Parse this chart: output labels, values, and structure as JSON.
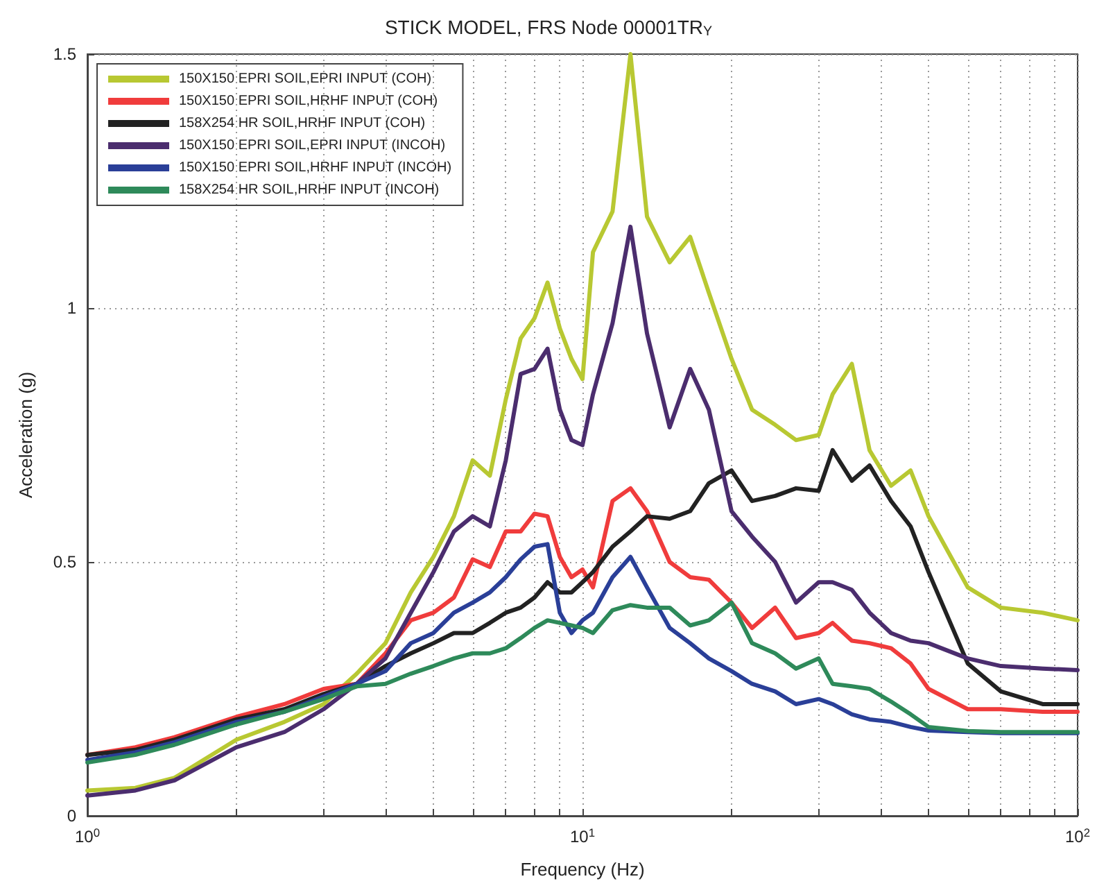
{
  "chart_data": {
    "type": "line",
    "title": "STICK MODEL, FRS Node 00001TR$_{Y}$",
    "xlabel": "Frequency (Hz)",
    "ylabel": "Acceleration (g)",
    "x": [
      1,
      1.25,
      1.5,
      2,
      2.5,
      3,
      3.5,
      4,
      4.5,
      5,
      5.5,
      6,
      6.5,
      7,
      7.5,
      8,
      8.5,
      9,
      9.5,
      10,
      10.5,
      11.5,
      12.5,
      13.5,
      15,
      16.5,
      18,
      20,
      22,
      24.5,
      27,
      30,
      32,
      35,
      38,
      42,
      46,
      50,
      60,
      70,
      85,
      100
    ],
    "series": [
      {
        "name": "150X150 EPRI SOIL,EPRI INPUT (COH)",
        "color": "#b8c832",
        "values": [
          0.05,
          0.055,
          0.075,
          0.15,
          0.185,
          0.22,
          0.28,
          0.34,
          0.44,
          0.51,
          0.59,
          0.7,
          0.67,
          0.82,
          0.94,
          0.98,
          1.05,
          0.96,
          0.9,
          0.86,
          1.11,
          1.19,
          1.5,
          1.18,
          1.09,
          1.14,
          1.03,
          0.9,
          0.8,
          0.77,
          0.74,
          0.75,
          0.83,
          0.89,
          0.72,
          0.65,
          0.68,
          0.59,
          0.45,
          0.41,
          0.4,
          0.385
        ]
      },
      {
        "name": "150X150 EPRI SOIL,HRHF INPUT (COH)",
        "color": "#f03c3c",
        "values": [
          0.12,
          0.135,
          0.155,
          0.195,
          0.22,
          0.25,
          0.26,
          0.32,
          0.385,
          0.4,
          0.43,
          0.505,
          0.49,
          0.56,
          0.56,
          0.595,
          0.59,
          0.51,
          0.47,
          0.485,
          0.45,
          0.62,
          0.645,
          0.6,
          0.5,
          0.47,
          0.465,
          0.42,
          0.37,
          0.41,
          0.35,
          0.36,
          0.38,
          0.345,
          0.34,
          0.33,
          0.3,
          0.25,
          0.21,
          0.21,
          0.205,
          0.205
        ]
      },
      {
        "name": "158X254 HR SOIL,HRHF INPUT (COH)",
        "color": "#222222",
        "values": [
          0.12,
          0.13,
          0.15,
          0.19,
          0.21,
          0.24,
          0.26,
          0.295,
          0.32,
          0.34,
          0.36,
          0.36,
          0.38,
          0.4,
          0.41,
          0.43,
          0.46,
          0.44,
          0.44,
          0.46,
          0.48,
          0.53,
          0.56,
          0.59,
          0.585,
          0.6,
          0.655,
          0.68,
          0.62,
          0.63,
          0.645,
          0.64,
          0.72,
          0.66,
          0.69,
          0.62,
          0.57,
          0.48,
          0.3,
          0.245,
          0.22,
          0.22
        ]
      },
      {
        "name": "150X150 EPRI SOIL,EPRI INPUT (INCOH)",
        "color": "#4b2d6e",
        "values": [
          0.04,
          0.05,
          0.07,
          0.135,
          0.165,
          0.21,
          0.26,
          0.31,
          0.4,
          0.48,
          0.56,
          0.59,
          0.57,
          0.7,
          0.87,
          0.88,
          0.92,
          0.8,
          0.74,
          0.73,
          0.83,
          0.97,
          1.16,
          0.95,
          0.765,
          0.88,
          0.8,
          0.6,
          0.55,
          0.5,
          0.42,
          0.46,
          0.46,
          0.445,
          0.4,
          0.36,
          0.345,
          0.34,
          0.31,
          0.295,
          0.29,
          0.287
        ]
      },
      {
        "name": "150X150 EPRI SOIL,HRHF INPUT (INCOH)",
        "color": "#2a3f98",
        "values": [
          0.11,
          0.125,
          0.145,
          0.185,
          0.205,
          0.235,
          0.26,
          0.285,
          0.34,
          0.36,
          0.4,
          0.42,
          0.44,
          0.47,
          0.505,
          0.53,
          0.535,
          0.4,
          0.36,
          0.385,
          0.4,
          0.47,
          0.51,
          0.45,
          0.37,
          0.34,
          0.31,
          0.285,
          0.26,
          0.245,
          0.22,
          0.23,
          0.22,
          0.2,
          0.19,
          0.185,
          0.175,
          0.168,
          0.165,
          0.163,
          0.163,
          0.163
        ]
      },
      {
        "name": "158X254 HR SOIL,HRHF INPUT (INCOH)",
        "color": "#2e8a5a",
        "values": [
          0.105,
          0.12,
          0.14,
          0.18,
          0.205,
          0.23,
          0.255,
          0.26,
          0.28,
          0.295,
          0.31,
          0.32,
          0.32,
          0.33,
          0.35,
          0.37,
          0.385,
          0.38,
          0.375,
          0.37,
          0.36,
          0.405,
          0.415,
          0.41,
          0.41,
          0.375,
          0.385,
          0.42,
          0.34,
          0.32,
          0.29,
          0.31,
          0.26,
          0.255,
          0.25,
          0.225,
          0.2,
          0.175,
          0.167,
          0.165,
          0.165,
          0.165
        ]
      }
    ],
    "log": "x",
    "xlim": [
      1,
      100
    ],
    "xticks": [
      {
        "value": 1,
        "label": "10$^{0}$"
      },
      {
        "value": 2,
        "label": null
      },
      {
        "value": 3,
        "label": null
      },
      {
        "value": 4,
        "label": null
      },
      {
        "value": 5,
        "label": null
      },
      {
        "value": 6,
        "label": null
      },
      {
        "value": 7,
        "label": null
      },
      {
        "value": 8,
        "label": null
      },
      {
        "value": 9,
        "label": null
      },
      {
        "value": 10,
        "label": "10$^{1}$"
      },
      {
        "value": 20,
        "label": null
      },
      {
        "value": 30,
        "label": null
      },
      {
        "value": 40,
        "label": null
      },
      {
        "value": 50,
        "label": null
      },
      {
        "value": 60,
        "label": null
      },
      {
        "value": 70,
        "label": null
      },
      {
        "value": 80,
        "label": null
      },
      {
        "value": 90,
        "label": null
      },
      {
        "value": 100,
        "label": "10$^{2}$"
      }
    ],
    "ylim": [
      0,
      1.5
    ],
    "yticks": [
      0,
      0.5,
      1,
      1.5
    ],
    "grid": true,
    "legend": "top left",
    "marker": "none",
    "line_style": "solid"
  }
}
